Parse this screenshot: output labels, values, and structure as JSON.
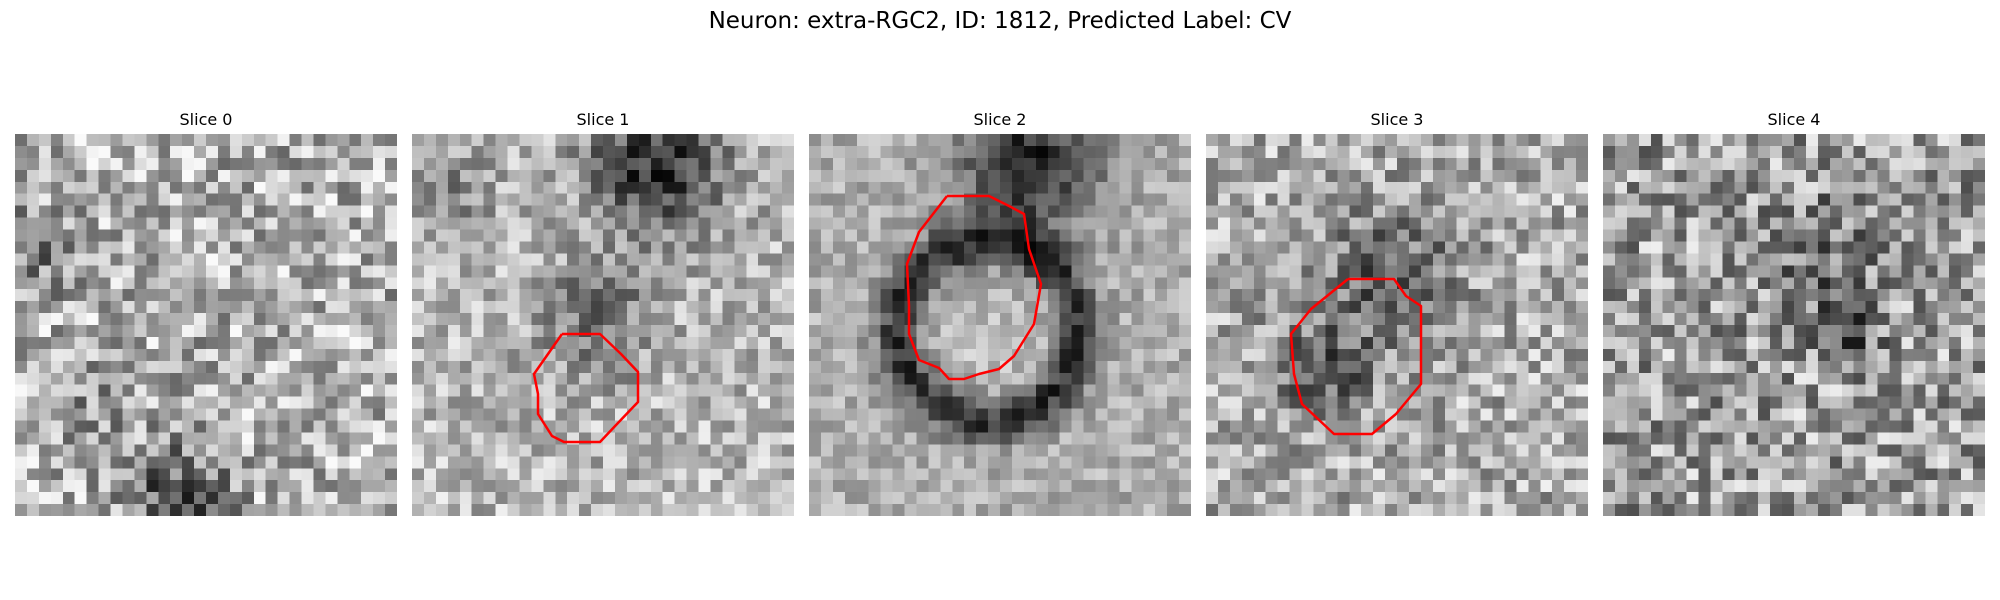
{
  "figure": {
    "title": "Neuron: extra-RGC2, ID: 1812, Predicted Label: CV"
  },
  "colors": {
    "contour": "#ff0000",
    "background": "#ffffff"
  },
  "panels": [
    {
      "title": "Slice 0",
      "has_contour": false
    },
    {
      "title": "Slice 1",
      "has_contour": true
    },
    {
      "title": "Slice 2",
      "has_contour": true
    },
    {
      "title": "Slice 3",
      "has_contour": true
    },
    {
      "title": "Slice 4",
      "has_contour": false
    }
  ]
}
